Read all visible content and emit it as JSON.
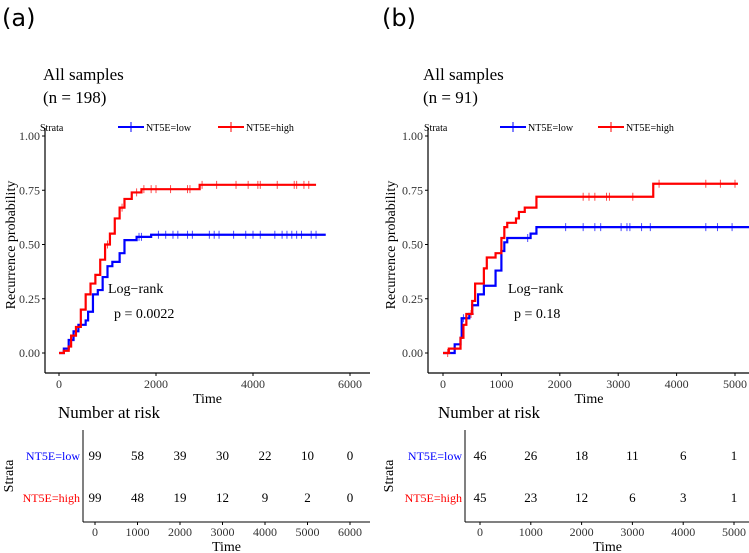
{
  "chart_data": [
    {
      "type": "line",
      "panel_label": "(a)",
      "title": "All samples",
      "subtitle": "(n = 198)",
      "legend_title": "Strata",
      "legend_placement": "top",
      "xlabel": "Time",
      "ylabel": "Recurrence probability",
      "xlim": [
        0,
        6000
      ],
      "ylim": [
        0,
        1
      ],
      "xticks": [
        "0",
        "2000",
        "4000",
        "6000"
      ],
      "xtick_values": [
        0,
        2000,
        4000,
        6000
      ],
      "yticks": [
        "0.00",
        "0.25",
        "0.50",
        "0.75",
        "1.00"
      ],
      "annotation": [
        "Log−rank",
        "p = 0.0022"
      ],
      "series": [
        {
          "name": "NT5E=low",
          "color": "#0000ff",
          "x": [
            0,
            100,
            200,
            300,
            400,
            550,
            600,
            700,
            800,
            900,
            1000,
            1100,
            1250,
            1350,
            1600,
            1900,
            5500
          ],
          "y": [
            0,
            0.02,
            0.06,
            0.1,
            0.13,
            0.15,
            0.19,
            0.27,
            0.29,
            0.35,
            0.4,
            0.42,
            0.46,
            0.52,
            0.535,
            0.545,
            0.545
          ],
          "censored": [
            1650,
            1700,
            2050,
            2200,
            2350,
            2450,
            2650,
            2750,
            3100,
            3200,
            3300,
            3600,
            3850,
            4000,
            4150,
            4450,
            4600,
            4700,
            4800,
            4900,
            5000,
            5200,
            5300
          ]
        },
        {
          "name": "NT5E=high",
          "color": "#ff0000",
          "x": [
            0,
            100,
            200,
            250,
            350,
            450,
            550,
            650,
            750,
            850,
            950,
            1050,
            1150,
            1250,
            1350,
            1500,
            1700,
            2900,
            5300
          ],
          "y": [
            0,
            0.01,
            0.03,
            0.08,
            0.12,
            0.2,
            0.27,
            0.32,
            0.36,
            0.43,
            0.5,
            0.55,
            0.62,
            0.67,
            0.71,
            0.74,
            0.755,
            0.775,
            0.775
          ],
          "censored": [
            1000,
            1300,
            1600,
            1750,
            1900,
            2000,
            2300,
            2650,
            2700,
            2950,
            3250,
            3650,
            3900,
            4100,
            4150,
            4500,
            4850,
            4900,
            5050,
            5150
          ]
        }
      ],
      "risk_table": {
        "title": "Number at risk",
        "ylabel": "Strata",
        "xlabel": "Time",
        "times": [
          "0",
          "1000",
          "2000",
          "3000",
          "4000",
          "5000",
          "6000"
        ],
        "time_values": [
          0,
          1000,
          2000,
          3000,
          4000,
          5000,
          6000
        ],
        "rows": [
          {
            "name": "NT5E=low",
            "values": [
              "99",
              "58",
              "39",
              "30",
              "22",
              "10",
              "0"
            ]
          },
          {
            "name": "NT5E=high",
            "values": [
              "99",
              "48",
              "19",
              "12",
              "9",
              "2",
              "0"
            ]
          }
        ]
      }
    },
    {
      "type": "line",
      "panel_label": "(b)",
      "title": "All samples",
      "subtitle": "(n = 91)",
      "legend_title": "Strata",
      "legend_placement": "top",
      "xlabel": "Time",
      "ylabel": "Recurrence probability",
      "xlim": [
        0,
        5250
      ],
      "ylim": [
        0,
        1
      ],
      "xticks": [
        "0",
        "1000",
        "2000",
        "3000",
        "4000",
        "5000"
      ],
      "xtick_values": [
        0,
        1000,
        2000,
        3000,
        4000,
        5000
      ],
      "yticks": [
        "0.00",
        "0.25",
        "0.50",
        "0.75",
        "1.00"
      ],
      "annotation": [
        "Log−rank",
        "p = 0.18"
      ],
      "series": [
        {
          "name": "NT5E=low",
          "color": "#0000ff",
          "x": [
            0,
            200,
            300,
            320,
            450,
            500,
            600,
            700,
            900,
            1000,
            1050,
            1100,
            1500,
            1600,
            5250
          ],
          "y": [
            0,
            0.04,
            0.07,
            0.16,
            0.18,
            0.22,
            0.27,
            0.31,
            0.38,
            0.47,
            0.51,
            0.53,
            0.55,
            0.58,
            0.58
          ],
          "censored": [
            350,
            1450,
            2100,
            2400,
            2600,
            2700,
            3050,
            3150,
            3200,
            3400,
            3550,
            4500,
            4700,
            4950
          ]
        },
        {
          "name": "NT5E=high",
          "color": "#ff0000",
          "x": [
            0,
            100,
            300,
            350,
            400,
            500,
            550,
            700,
            750,
            900,
            1000,
            1050,
            1100,
            1250,
            1300,
            1400,
            1600,
            3600,
            5050
          ],
          "y": [
            0,
            0.02,
            0.07,
            0.13,
            0.18,
            0.24,
            0.32,
            0.39,
            0.44,
            0.46,
            0.53,
            0.58,
            0.6,
            0.62,
            0.65,
            0.67,
            0.72,
            0.78,
            0.78
          ],
          "censored": [
            80,
            480,
            2400,
            2500,
            2600,
            2800,
            2850,
            3250,
            3700,
            4500,
            4750,
            5000
          ]
        }
      ],
      "risk_table": {
        "title": "Number at risk",
        "ylabel": "Strata",
        "xlabel": "Time",
        "times": [
          "0",
          "1000",
          "2000",
          "3000",
          "4000",
          "5000"
        ],
        "time_values": [
          0,
          1000,
          2000,
          3000,
          4000,
          5000
        ],
        "rows": [
          {
            "name": "NT5E=low",
            "values": [
              "46",
              "26",
              "18",
              "11",
              "6",
              "1"
            ]
          },
          {
            "name": "NT5E=high",
            "values": [
              "45",
              "23",
              "12",
              "6",
              "3",
              "1"
            ]
          }
        ]
      }
    }
  ]
}
